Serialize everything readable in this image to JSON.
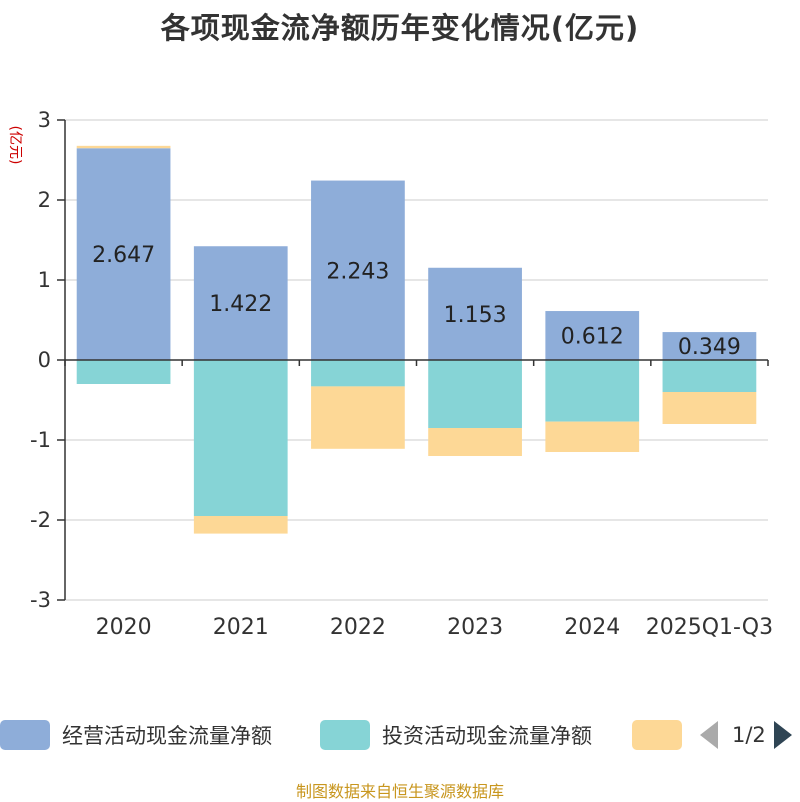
{
  "chart_data": {
    "type": "bar",
    "stacked": true,
    "title": "各项现金流净额历年变化情况(亿元)",
    "ylabel": "(亿元)",
    "xlabel": "",
    "ylim": [
      -3,
      3
    ],
    "yticks": [
      3,
      2,
      1,
      0,
      -1,
      -2,
      -3
    ],
    "grid": true,
    "categories": [
      "2020",
      "2021",
      "2022",
      "2023",
      "2024",
      "2025Q1-Q3"
    ],
    "series": [
      {
        "name": "经营活动现金流量净额",
        "color": "#8eadd9",
        "values": [
          2.647,
          1.422,
          2.243,
          1.153,
          0.612,
          0.349
        ],
        "labels": [
          "2.647",
          "1.422",
          "2.243",
          "1.153",
          "0.612",
          "0.349"
        ]
      },
      {
        "name": "投资活动现金流量净额",
        "color": "#86d4d6",
        "values": [
          -0.3,
          -1.95,
          -0.33,
          -0.85,
          -0.77,
          -0.4
        ]
      },
      {
        "name": "",
        "color": "#fdd896",
        "values": [
          0.03,
          -0.22,
          -0.78,
          -0.35,
          -0.38,
          -0.4
        ]
      }
    ],
    "legend": {
      "position": "bottom",
      "page": "1/2"
    },
    "source": "制图数据来自恒生聚源数据库"
  }
}
